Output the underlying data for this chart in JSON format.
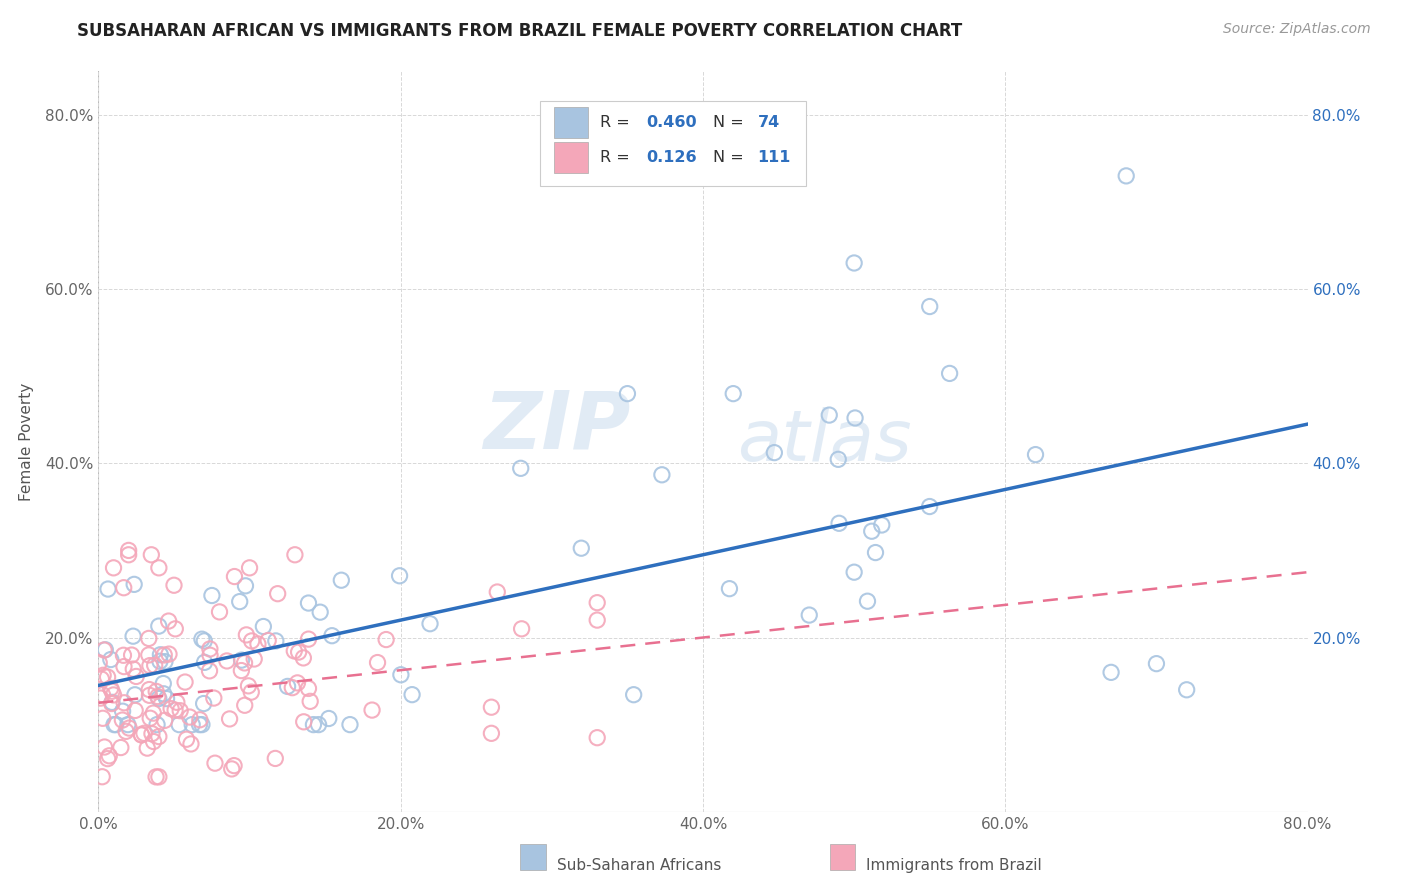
{
  "title": "SUBSAHARAN AFRICAN VS IMMIGRANTS FROM BRAZIL FEMALE POVERTY CORRELATION CHART",
  "source": "Source: ZipAtlas.com",
  "ylabel": "Female Poverty",
  "xlabel": "",
  "xlim": [
    0.0,
    0.8
  ],
  "ylim": [
    0.0,
    0.85
  ],
  "xticks": [
    0.0,
    0.2,
    0.4,
    0.6,
    0.8
  ],
  "yticks": [
    0.0,
    0.2,
    0.4,
    0.6,
    0.8
  ],
  "xticklabels": [
    "0.0%",
    "20.0%",
    "40.0%",
    "60.0%",
    "80.0%"
  ],
  "yticklabels": [
    "",
    "20.0%",
    "40.0%",
    "60.0%",
    "80.0%"
  ],
  "blue_R": 0.46,
  "blue_N": 74,
  "pink_R": 0.126,
  "pink_N": 111,
  "blue_color": "#a8c4e0",
  "pink_color": "#f4a7b9",
  "blue_line_color": "#2e6fbe",
  "pink_line_color": "#e87090",
  "legend_label_blue": "Sub-Saharan Africans",
  "legend_label_pink": "Immigrants from Brazil",
  "watermark_zip": "ZIP",
  "watermark_atlas": "atlas",
  "background_color": "#ffffff",
  "grid_color": "#d8d8d8",
  "blue_line_x0": 0.0,
  "blue_line_y0": 0.145,
  "blue_line_x1": 0.8,
  "blue_line_y1": 0.445,
  "pink_line_x0": 0.0,
  "pink_line_y0": 0.125,
  "pink_line_x1": 0.8,
  "pink_line_y1": 0.275
}
